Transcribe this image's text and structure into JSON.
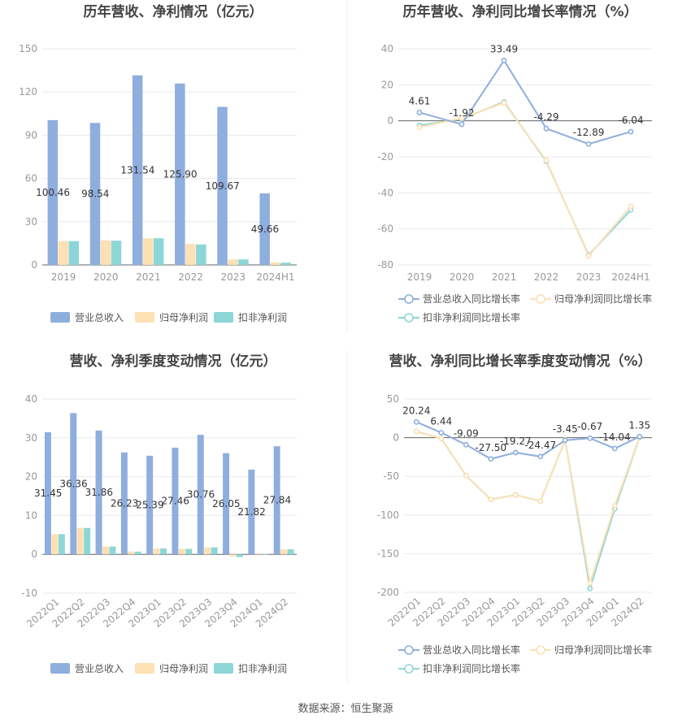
{
  "source_label": "数据来源：恒生聚源",
  "colors": {
    "revenue": "#8eaede",
    "net_profit": "#fde0b3",
    "deducted_profit": "#8dd6d8",
    "grid": "#e6e8f0",
    "axis_text": "#999999",
    "title": "#444444"
  },
  "chart_data": [
    {
      "type": "bar",
      "title": "历年营收、净利情况（亿元）",
      "categories": [
        "2019",
        "2020",
        "2021",
        "2022",
        "2023",
        "2024H1"
      ],
      "ylim": [
        0,
        150
      ],
      "yticks": [
        0,
        30,
        60,
        90,
        120,
        150
      ],
      "series": [
        {
          "name": "营业总收入",
          "color": "revenue",
          "values": [
            100.46,
            98.54,
            131.54,
            125.9,
            109.67,
            49.66
          ],
          "data_labels": [
            "100.46",
            "98.54",
            "131.54",
            "125.90",
            "109.67",
            "49.66"
          ]
        },
        {
          "name": "归母净利润",
          "color": "net_profit",
          "values": [
            16.5,
            17.0,
            18.5,
            14.5,
            3.8,
            1.8
          ]
        },
        {
          "name": "扣非净利润",
          "color": "deducted_profit",
          "values": [
            16.5,
            16.8,
            18.5,
            14.2,
            3.8,
            1.6
          ]
        }
      ]
    },
    {
      "type": "line",
      "title": "历年营收、净利同比增长率情况（%）",
      "categories": [
        "2019",
        "2020",
        "2021",
        "2022",
        "2023",
        "2024H1"
      ],
      "ylim": [
        -80,
        40
      ],
      "yticks": [
        -80,
        -60,
        -40,
        -20,
        0,
        20,
        40
      ],
      "series": [
        {
          "name": "营业总收入同比增长率",
          "color": "revenue",
          "values": [
            4.61,
            -1.92,
            33.49,
            -4.29,
            -12.89,
            -6.04
          ],
          "data_labels": [
            "4.61",
            "-1.92",
            "33.49",
            "-4.29",
            "-12.89",
            "-6.04"
          ]
        },
        {
          "name": "归母净利润同比增长率",
          "color": "net_profit",
          "values": [
            -3.5,
            1.5,
            10.0,
            -22.0,
            -75.0,
            -47.5
          ]
        },
        {
          "name": "扣非净利润同比增长率",
          "color": "deducted_profit",
          "values": [
            -2.5,
            1.0,
            10.5,
            -22.5,
            -74.5,
            -49.5
          ]
        }
      ]
    },
    {
      "type": "bar",
      "title": "营收、净利季度变动情况（亿元）",
      "categories": [
        "2022Q1",
        "2022Q2",
        "2022Q3",
        "2022Q4",
        "2023Q1",
        "2023Q2",
        "2023Q3",
        "2023Q4",
        "2024Q1",
        "2024Q2"
      ],
      "ylim": [
        -10,
        40
      ],
      "yticks": [
        -10,
        0,
        10,
        20,
        30,
        40
      ],
      "series": [
        {
          "name": "营业总收入",
          "color": "revenue",
          "values": [
            31.45,
            36.36,
            31.86,
            26.23,
            25.39,
            27.46,
            30.76,
            26.05,
            21.82,
            27.84
          ],
          "data_labels": [
            "31.45",
            "36.36",
            "31.86",
            "26.23",
            "25.39",
            "27.46",
            "30.76",
            "26.05",
            "21.82",
            "27.84"
          ]
        },
        {
          "name": "归母净利润",
          "color": "net_profit",
          "values": [
            5.2,
            6.8,
            2.0,
            0.7,
            1.5,
            1.4,
            1.8,
            -0.5,
            0.2,
            1.3
          ]
        },
        {
          "name": "扣非净利润",
          "color": "deducted_profit",
          "values": [
            5.2,
            6.8,
            2.0,
            0.7,
            1.5,
            1.4,
            1.8,
            -0.7,
            0.1,
            1.3
          ]
        }
      ]
    },
    {
      "type": "line",
      "title": "营收、净利同比增长率季度变动情况（%）",
      "categories": [
        "2022Q1",
        "2022Q2",
        "2022Q3",
        "2022Q4",
        "2023Q1",
        "2023Q2",
        "2023Q3",
        "2023Q4",
        "2024Q1",
        "2024Q2"
      ],
      "ylim": [
        -200,
        50
      ],
      "yticks": [
        -200,
        -150,
        -100,
        -50,
        0,
        50
      ],
      "series": [
        {
          "name": "营业总收入同比增长率",
          "color": "revenue",
          "values": [
            20.24,
            6.44,
            -9.09,
            -27.5,
            -19.27,
            -24.47,
            -3.45,
            -0.67,
            -14.04,
            1.35
          ],
          "data_labels": [
            "20.24",
            "6.44",
            "-9.09",
            "-27.50",
            "-19.27",
            "-24.47",
            "-3.45",
            "-0.67",
            "-14.04",
            "1.35"
          ]
        },
        {
          "name": "归母净利润同比增长率",
          "color": "net_profit",
          "values": [
            8.0,
            -1.0,
            -49.0,
            -80.0,
            -74.0,
            -82.0,
            -3.0,
            -188.0,
            -88.0,
            1.0
          ]
        },
        {
          "name": "扣非净利润同比增长率",
          "color": "deducted_profit",
          "values": [
            8.0,
            -1.0,
            -49.0,
            -80.0,
            -74.0,
            -82.0,
            -3.0,
            -195.0,
            -92.0,
            0.5
          ]
        }
      ]
    }
  ]
}
